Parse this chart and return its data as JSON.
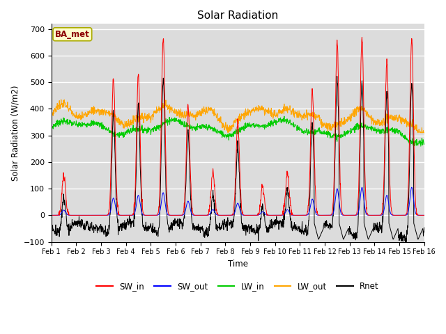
{
  "title": "Solar Radiation",
  "ylabel": "Solar Radiation (W/m2)",
  "xlabel": "Time",
  "ylim": [
    -100,
    720
  ],
  "yticks": [
    -100,
    0,
    100,
    200,
    300,
    400,
    500,
    600,
    700
  ],
  "xtick_labels": [
    "Feb 1",
    "Feb 2",
    "Feb 3",
    "Feb 4",
    "Feb 5",
    "Feb 6",
    "Feb 7",
    "Feb 8",
    "Feb 9",
    "Feb 10",
    "Feb 11",
    "Feb 12",
    "Feb 13",
    "Feb 14",
    "Feb 15",
    "Feb 16"
  ],
  "legend_labels": [
    "SW_in",
    "SW_out",
    "LW_in",
    "LW_out",
    "Rnet"
  ],
  "legend_colors": [
    "#ff0000",
    "#0000ff",
    "#00cc00",
    "#ffa500",
    "#000000"
  ],
  "annotation_text": "BA_met",
  "annotation_color": "#8b0000",
  "background_color": "#dcdcdc",
  "SW_in_color": "#ff0000",
  "SW_out_color": "#0000ff",
  "LW_in_color": "#00cc00",
  "LW_out_color": "#ffa500",
  "Rnet_color": "#000000",
  "n_days": 15,
  "points_per_day": 96
}
